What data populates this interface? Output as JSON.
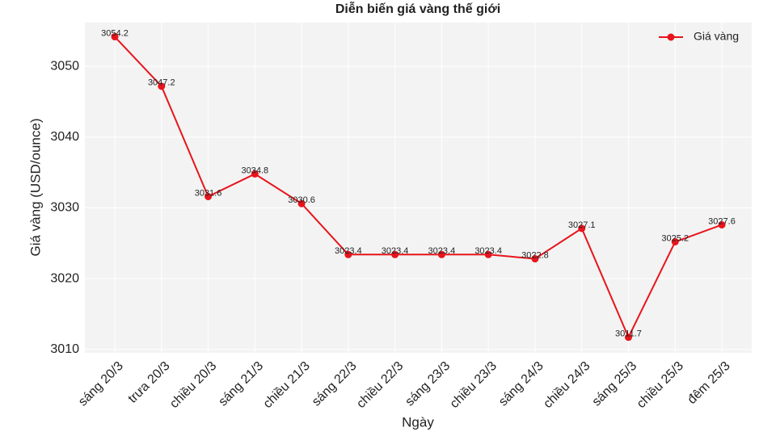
{
  "chart_data": {
    "type": "line",
    "title": "Diễn biến giá vàng thế giới",
    "x_label": "Ngày",
    "y_label": "Giá vàng (USD/ounce)",
    "categories": [
      "sáng 20/3",
      "trưa 20/3",
      "chiều 20/3",
      "sáng 21/3",
      "chiều 21/3",
      "sáng 22/3",
      "chiều 22/3",
      "sáng 23/3",
      "chiều 23/3",
      "sáng 24/3",
      "chiều 24/3",
      "sáng 25/3",
      "chiều 25/3",
      "đêm 25/3"
    ],
    "series": [
      {
        "name": "Giá vàng",
        "color": "#e8141c",
        "values": [
          3054.2,
          3047.2,
          3031.6,
          3034.8,
          3030.6,
          3023.4,
          3023.4,
          3023.4,
          3023.4,
          3022.8,
          3027.1,
          3011.7,
          3025.2,
          3027.6
        ]
      }
    ],
    "ylim": [
      3009.5,
      3056.2
    ],
    "yticks": [
      3010,
      3020,
      3030,
      3040,
      3050
    ],
    "grid": true,
    "legend": "upper right"
  }
}
